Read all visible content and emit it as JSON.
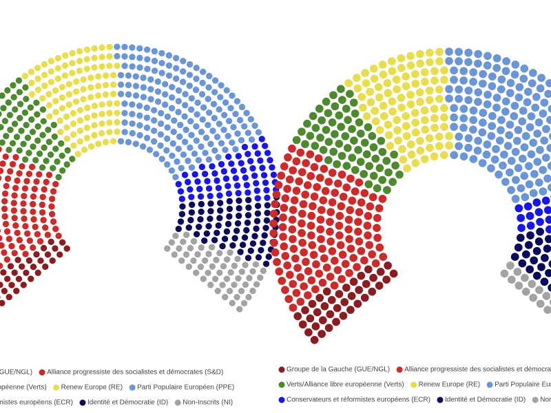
{
  "chart_data": [
    {
      "type": "parliament",
      "categories": [
        "Groupe de la Gauche (GUE/NGL)",
        "Alliance progressiste des socialistes et démocrates (S&D)",
        "Verts/Alliance libre européenne (Verts)",
        "Renew Europe (RE)",
        "Parti Populaire Européen (PPE)",
        "Conservateurs et réformistes européens (ECR)",
        "Identité et Démocratie (ID)",
        "Non-Inscrits (NI)"
      ],
      "values": [
        41,
        154,
        74,
        108,
        182,
        62,
        73,
        57
      ],
      "colors": [
        "#8b1c1f",
        "#cf2a2a",
        "#4d8a2e",
        "#e8dd4c",
        "#6a95d6",
        "#1717ec",
        "#0b0b5c",
        "#a3a3a3"
      ]
    },
    {
      "type": "parliament",
      "categories": [
        "Groupe de la Gauche (GUE/NGL)",
        "Alliance progressiste des socialistes et démocrates (S&D)",
        "Verts/Alliance libre européenne (Verts)",
        "Renew Europe (RE)",
        "Parti Populaire Européen (PPE)",
        "Conservateurs et réformistes européens (ECR)",
        "Identité et Démocratie (ID)",
        "Non-Inscrits (NI)"
      ],
      "values": [
        39,
        148,
        67,
        97,
        187,
        61,
        76,
        29
      ],
      "colors": [
        "#8b1c1f",
        "#cf2a2a",
        "#4d8a2e",
        "#e8dd4c",
        "#6a95d6",
        "#1717ec",
        "#0b0b5c",
        "#a3a3a3"
      ]
    }
  ]
}
